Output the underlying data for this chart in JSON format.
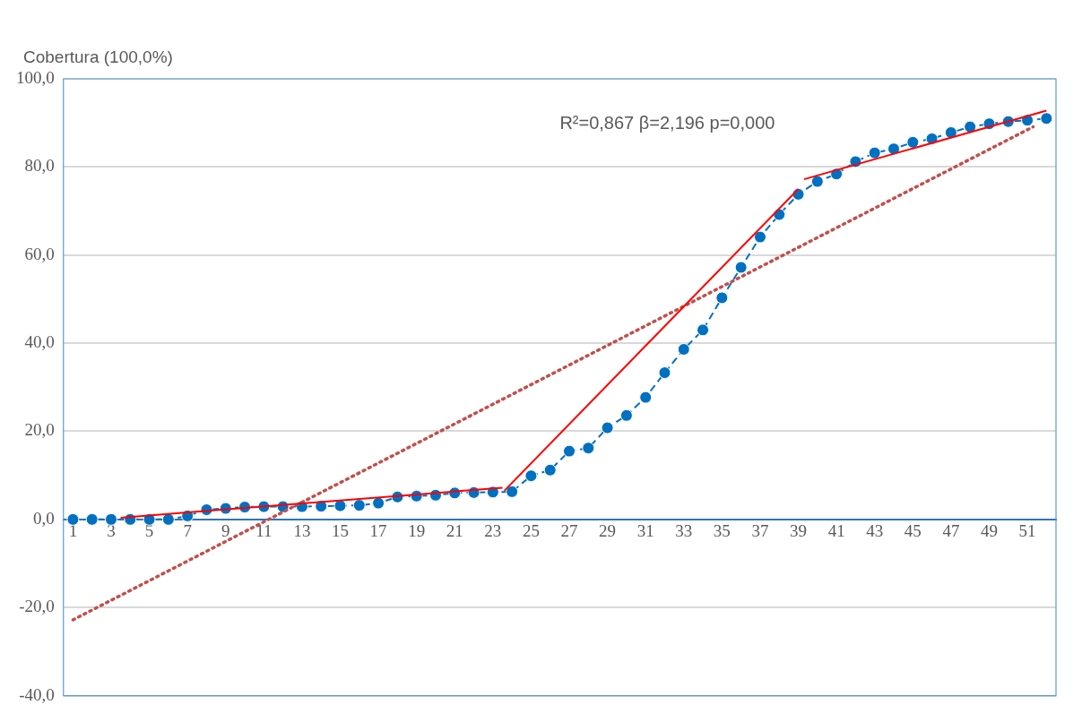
{
  "chart_data": {
    "type": "line",
    "ylabel": "Cobertura (100,0%)",
    "annotations": [
      "R²=0,867 β=2,196 p=0,000"
    ],
    "xlim": [
      0.5,
      52.5
    ],
    "xticks": [
      1,
      3,
      5,
      7,
      9,
      11,
      13,
      15,
      17,
      19,
      21,
      23,
      25,
      27,
      29,
      31,
      33,
      35,
      37,
      39,
      41,
      43,
      45,
      47,
      49,
      51
    ],
    "ylim": [
      -40,
      100
    ],
    "yticks": [
      {
        "value": -40,
        "label": "-40,0"
      },
      {
        "value": -20,
        "label": "-20,0"
      },
      {
        "value": 0,
        "label": "0,0"
      },
      {
        "value": 20,
        "label": "20,0"
      },
      {
        "value": 40,
        "label": "40,0"
      },
      {
        "value": 60,
        "label": "60,0"
      },
      {
        "value": 80,
        "label": "80,0"
      },
      {
        "value": 100,
        "label": "100,0"
      }
    ],
    "grid": "y",
    "legend": false,
    "series": [
      {
        "type": "line",
        "color": "#0070c0",
        "marker": "circle",
        "line_style": "dashed",
        "x": [
          1,
          2,
          3,
          4,
          5,
          6,
          7,
          8,
          9,
          10,
          11,
          12,
          13,
          14,
          15,
          16,
          17,
          18,
          19,
          20,
          21,
          22,
          23,
          24,
          25,
          26,
          27,
          28,
          29,
          30,
          31,
          32,
          33,
          34,
          35,
          36,
          37,
          38,
          39,
          40,
          41,
          42,
          43,
          44,
          45,
          46,
          47,
          48,
          49,
          50,
          51,
          52
        ],
        "values": [
          0,
          0,
          0,
          0,
          0,
          0,
          0.8,
          2.2,
          2.5,
          2.8,
          2.9,
          2.9,
          2.9,
          3.0,
          3.1,
          3.2,
          3.7,
          5.1,
          5.3,
          5.5,
          6.0,
          6.1,
          6.2,
          6.3,
          9.9,
          11.2,
          15.5,
          16.2,
          20.8,
          23.6,
          27.7,
          33.3,
          38.6,
          43.0,
          50.3,
          57.2,
          64.1,
          69.2,
          73.8,
          76.7,
          78.4,
          81.2,
          83.2,
          84.1,
          85.6,
          86.4,
          87.8,
          89.1,
          89.8,
          90.3,
          90.6,
          91.0
        ]
      },
      {
        "type": "line",
        "color": "#ff0000",
        "marker": "none",
        "line_style": "solid",
        "x": [
          3.5,
          23.5
        ],
        "values": [
          0.4,
          7.2
        ]
      },
      {
        "type": "line",
        "color": "#ff0000",
        "marker": "none",
        "line_style": "solid",
        "x": [
          23.6,
          39
        ],
        "values": [
          6.5,
          75.0
        ]
      },
      {
        "type": "line",
        "color": "#ff0000",
        "marker": "none",
        "line_style": "solid",
        "x": [
          39.3,
          52
        ],
        "values": [
          77.2,
          92.8
        ]
      },
      {
        "type": "line",
        "color": "#c0504d",
        "marker": "none",
        "line_style": "dotted",
        "x": [
          1,
          51.3
        ],
        "values": [
          -22.8,
          89.1
        ]
      }
    ]
  }
}
